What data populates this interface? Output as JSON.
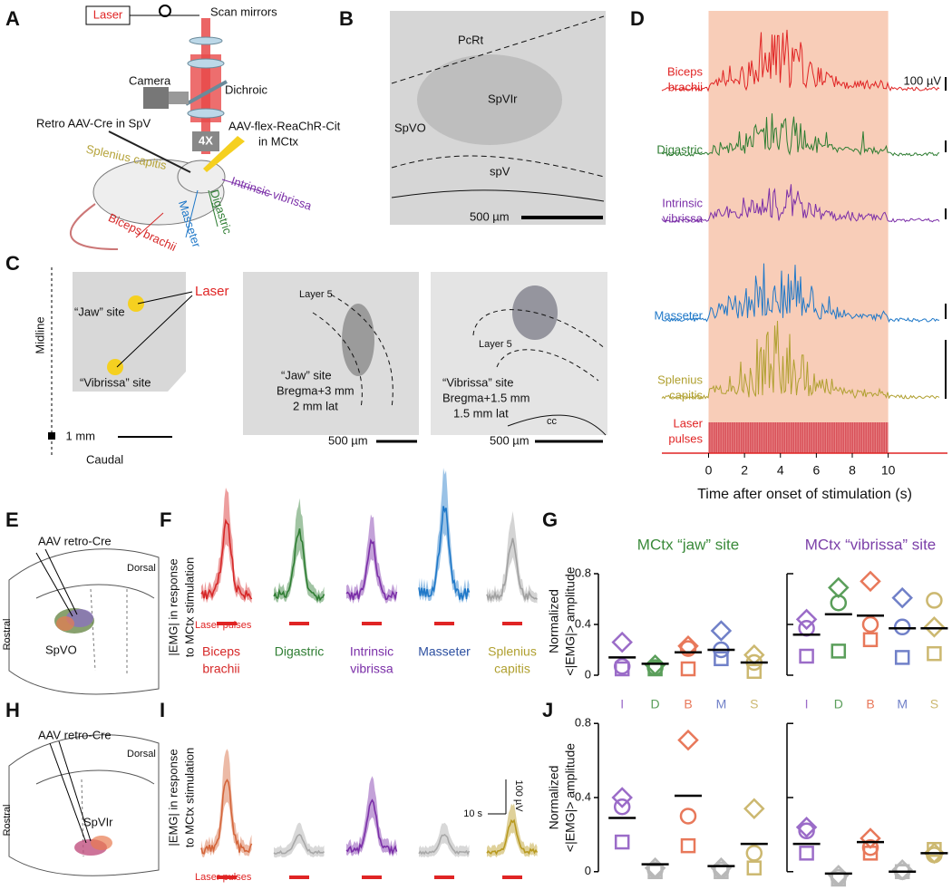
{
  "panels": {
    "A": {
      "label": "A",
      "laser": "Laser",
      "scan_mirrors": "Scan mirrors",
      "camera": "Camera",
      "dichroic": "Dichroic",
      "objective": "4X",
      "retro": "Retro AAV-Cre in SpV",
      "aav": [
        "AAV-flex-ReaChR-Cit",
        "in MCtx"
      ],
      "muscles": [
        "Splenius capitis",
        "Biceps brachii",
        "Masseter",
        "Digastric",
        "Intrinsic vibrissa"
      ]
    },
    "B": {
      "label": "B",
      "regions": [
        "PcRt",
        "SpVIr",
        "SpVO",
        "spV"
      ],
      "scale": "500 µm"
    },
    "C": {
      "label": "C",
      "midline": "Midline",
      "jaw_site": "“Jaw” site",
      "vibrissa_site": "“Vibrissa” site",
      "laser": "Laser",
      "scale": "1 mm",
      "caudal": "Caudal",
      "left_image": {
        "layer": "Layer 5",
        "lines": [
          "“Jaw” site",
          "Bregma+3 mm",
          "2 mm lat"
        ],
        "scale": "500 µm"
      },
      "right_image": {
        "layer": "Layer 5",
        "lines": [
          "“Vibrissa” site",
          "Bregma+1.5 mm",
          "1.5 mm lat"
        ],
        "cc": "cc",
        "scale": "500 µm"
      }
    },
    "D": {
      "label": "D",
      "traces": [
        [
          "Biceps",
          "brachii"
        ],
        [
          "Digastric"
        ],
        [
          "Intrinsic",
          "vibrissa"
        ],
        [
          "Masseter"
        ],
        [
          "Splenius",
          "capitis"
        ]
      ],
      "colors": [
        "#e02424",
        "#2e7d32",
        "#7b2fa8",
        "#1f78c8",
        "#b0a030"
      ],
      "scale": "100 µV",
      "laser": [
        "Laser",
        "pulses"
      ]
    },
    "E": {
      "label": "E",
      "virus": "AAV retro-Cre",
      "dorsal": "Dorsal",
      "rostral": "Rostral",
      "region": "SpVO"
    },
    "F": {
      "label": "F",
      "ylabel": [
        "|EMG| in response",
        "to MCtx stimulation"
      ],
      "laser": "Laser pulses",
      "muscles": [
        [
          "Biceps",
          "brachii"
        ],
        [
          "Digastric"
        ],
        [
          "Intrinsic",
          "vibrissa"
        ],
        [
          "Masseter"
        ],
        [
          "Splenius",
          "capitis"
        ]
      ],
      "colors": [
        "#d62828",
        "#2e7d32",
        "#7b2fa8",
        "#1f78c8",
        "#a0a0a0"
      ],
      "label_colors": [
        "#d62828",
        "#2e7d32",
        "#7b2fa8",
        "#2c4fa0",
        "#b0a030"
      ]
    },
    "G": {
      "label": "G"
    },
    "H": {
      "label": "H",
      "virus": "AAV retro-Cre",
      "dorsal": "Dorsal",
      "rostral": "Rostral",
      "region": "SpVIr"
    },
    "I": {
      "label": "I",
      "ylabel": [
        "|EMG| in response",
        "to MCtx stimulation"
      ],
      "laser": "Laser pulses",
      "scale_v": "100 µV",
      "scale_t": "10 s",
      "colors": [
        "#d4653a",
        "#a8a8a8",
        "#7b2fa8",
        "#a8a8a8",
        "#b89a20"
      ]
    },
    "J": {
      "label": "J"
    }
  },
  "chart_data": [
    {
      "type": "timeline",
      "xlabel": "Time after onset of stimulation (s)",
      "xlim": [
        -2.6,
        13.3
      ],
      "xticks": [
        0,
        2,
        4,
        6,
        8,
        10
      ],
      "stim_window": [
        0,
        10
      ],
      "color": "#f8cdb8"
    },
    {
      "type": "scatter",
      "title": "MCtx “jaw” site",
      "title_color": "#3a8a3a",
      "ylabel": [
        "Normalized",
        "<|EMG|> amplitude"
      ],
      "ylim": [
        0,
        0.85
      ],
      "yticks": [
        0,
        0.4,
        0.8
      ],
      "show_tick_labels": true,
      "categories": [
        "I",
        "D",
        "B",
        "M",
        "S"
      ],
      "colors": [
        "#9b6cc8",
        "#5a9e5a",
        "#e8785a",
        "#7080c8",
        "#ccb870"
      ],
      "markers": {
        "diamond": [
          0.26,
          0.08,
          0.23,
          0.35,
          0.16
        ],
        "circle": [
          0.07,
          0.06,
          0.21,
          0.2,
          0.1
        ],
        "square": [
          0.05,
          0.05,
          0.05,
          0.13,
          0.03
        ],
        "mean": [
          0.14,
          0.09,
          0.18,
          0.2,
          0.1
        ]
      }
    },
    {
      "type": "scatter",
      "title": "MCtx “vibrissa” site",
      "title_color": "#7b3fa8",
      "ylim": [
        0,
        0.85
      ],
      "yticks": [
        0,
        0.4,
        0.8
      ],
      "show_tick_labels": false,
      "categories": [
        "I",
        "D",
        "B",
        "M",
        "S"
      ],
      "colors": [
        "#9b6cc8",
        "#5a9e5a",
        "#e8785a",
        "#7080c8",
        "#ccb870"
      ],
      "markers": {
        "diamond": [
          0.44,
          0.69,
          0.74,
          0.61,
          0.38
        ],
        "circle": [
          0.37,
          0.57,
          0.4,
          0.38,
          0.59
        ],
        "square": [
          0.15,
          0.19,
          0.28,
          0.14,
          0.17
        ],
        "mean": [
          0.32,
          0.48,
          0.47,
          0.37,
          0.37
        ]
      }
    },
    {
      "type": "scatter",
      "ylabel": [
        "Normalized",
        "<|EMG|> amplitude"
      ],
      "ylim": [
        -0.05,
        0.85
      ],
      "yticks": [
        0,
        0.4,
        0.8
      ],
      "show_tick_labels": true,
      "colors": [
        "#9b6cc8",
        "#b8b8b8",
        "#e8785a",
        "#b8b8b8",
        "#ccb870"
      ],
      "markers": {
        "diamond": [
          0.4,
          0.02,
          0.71,
          0.02,
          0.34
        ],
        "circle": [
          0.35,
          0.01,
          0.3,
          0.01,
          0.1
        ],
        "square": [
          0.16,
          0.0,
          0.14,
          0.0,
          0.02
        ],
        "mean": [
          0.29,
          0.04,
          0.41,
          0.03,
          0.15
        ]
      }
    },
    {
      "type": "scatter",
      "ylim": [
        -0.05,
        0.85
      ],
      "yticks": [
        0,
        0.4,
        0.8
      ],
      "show_tick_labels": false,
      "colors": [
        "#9b6cc8",
        "#b8b8b8",
        "#e8785a",
        "#b8b8b8",
        "#ccb870"
      ],
      "markers": {
        "diamond": [
          0.24,
          -0.02,
          0.18,
          0.01,
          0.1
        ],
        "circle": [
          0.22,
          -0.03,
          0.13,
          0.0,
          0.09
        ],
        "square": [
          0.1,
          -0.04,
          0.1,
          0.0,
          0.12
        ],
        "mean": [
          0.15,
          -0.01,
          0.16,
          0.0,
          0.1
        ]
      }
    }
  ]
}
